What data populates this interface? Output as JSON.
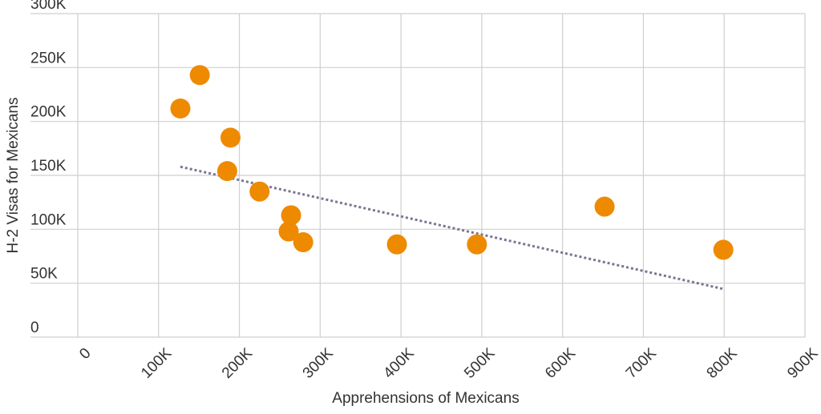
{
  "chart_data": {
    "type": "scatter",
    "xlabel": "Apprehensions of Mexicans",
    "ylabel": "H-2 Visas for Mexicans",
    "xlim": [
      0,
      900000
    ],
    "ylim": [
      0,
      300000
    ],
    "x_ticks": [
      0,
      100000,
      200000,
      300000,
      400000,
      500000,
      600000,
      700000,
      800000,
      900000
    ],
    "x_tick_labels": [
      "0",
      "100K",
      "200K",
      "300K",
      "400K",
      "500K",
      "600K",
      "700K",
      "800K",
      "900K"
    ],
    "y_ticks": [
      0,
      50000,
      100000,
      150000,
      200000,
      250000,
      300000
    ],
    "y_tick_labels": [
      "0",
      "50K",
      "100K",
      "150K",
      "200K",
      "250K",
      "300K"
    ],
    "grid": true,
    "point_color": "#ee8a00",
    "trend_color": "#7a7590",
    "points": [
      {
        "x": 127000,
        "y": 212000
      },
      {
        "x": 151000,
        "y": 243000
      },
      {
        "x": 189000,
        "y": 185000
      },
      {
        "x": 185000,
        "y": 154000
      },
      {
        "x": 225000,
        "y": 135000
      },
      {
        "x": 264000,
        "y": 113000
      },
      {
        "x": 261000,
        "y": 98000
      },
      {
        "x": 279000,
        "y": 88000
      },
      {
        "x": 395000,
        "y": 86000
      },
      {
        "x": 494000,
        "y": 86000
      },
      {
        "x": 652000,
        "y": 121000
      },
      {
        "x": 799000,
        "y": 81000
      }
    ],
    "trendline": {
      "x": [
        127000,
        800000
      ],
      "y": [
        158000,
        44500
      ]
    }
  }
}
